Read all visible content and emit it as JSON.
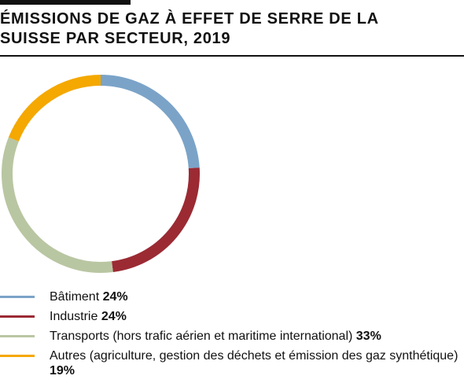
{
  "title_line1": "ÉMISSIONS DE GAZ À EFFET DE SERRE DE LA",
  "title_line2": "SUISSE PAR SECTEUR, 2019",
  "chart_data": {
    "type": "pie",
    "donut": true,
    "title": "ÉMISSIONS DE GAZ À EFFET DE SERRE DE LA SUISSE PAR SECTEUR, 2019",
    "legend_placement": "bottom",
    "series": [
      {
        "name": "Bâtiment",
        "value": 24,
        "value_label": "24%",
        "color": "#7BA3C8"
      },
      {
        "name": "Industrie",
        "value": 24,
        "value_label": "24%",
        "color": "#9B2A33"
      },
      {
        "name": "Transports (hors trafic aérien et maritime international)",
        "value": 33,
        "value_label": "33%",
        "color": "#B9C6A2"
      },
      {
        "name": "Autres (agriculture, gestion des déchets et émission des gaz synthétique)",
        "value": 19,
        "value_label": "19%",
        "color": "#F4A800"
      }
    ]
  }
}
